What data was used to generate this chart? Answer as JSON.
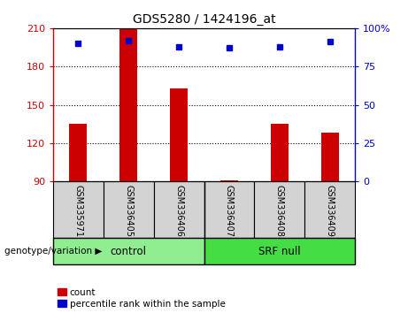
{
  "title": "GDS5280 / 1424196_at",
  "samples": [
    "GSM335971",
    "GSM336405",
    "GSM336406",
    "GSM336407",
    "GSM336408",
    "GSM336409"
  ],
  "count_values": [
    135,
    210,
    163,
    91,
    135,
    128
  ],
  "percentile_values": [
    90,
    92,
    88,
    87,
    88,
    91
  ],
  "ylim_left": [
    90,
    210
  ],
  "yticks_left": [
    90,
    120,
    150,
    180,
    210
  ],
  "ylim_right": [
    0,
    100
  ],
  "yticks_right": [
    0,
    25,
    50,
    75,
    100
  ],
  "groups": [
    {
      "label": "control",
      "color": "#90EE90",
      "start": 0,
      "end": 2
    },
    {
      "label": "SRF null",
      "color": "#44DD44",
      "start": 3,
      "end": 5
    }
  ],
  "bar_color": "#CC0000",
  "dot_color": "#0000CC",
  "genotype_label": "genotype/variation",
  "legend_count": "count",
  "legend_pct": "percentile rank within the sample",
  "bg_color": "#FFFFFF",
  "label_bg": "#D3D3D3",
  "title_fontsize": 10,
  "axis_fontsize": 8,
  "sample_fontsize": 7
}
